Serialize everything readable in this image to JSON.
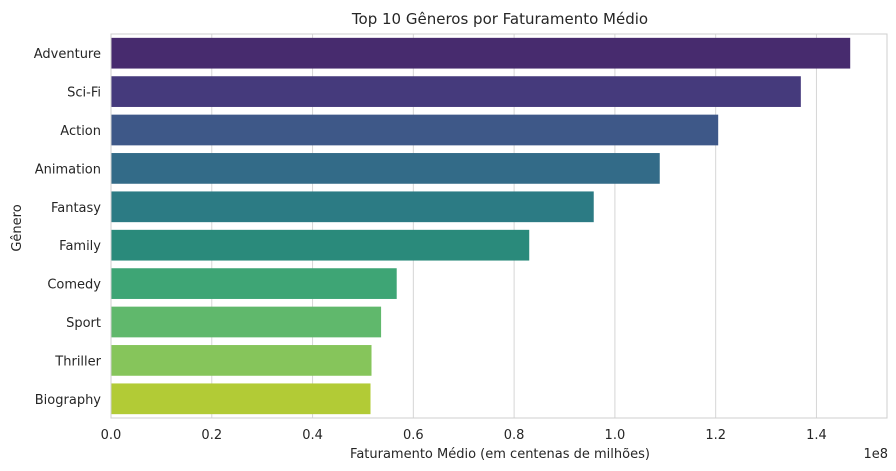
{
  "chart_data": {
    "type": "bar",
    "orientation": "horizontal",
    "title": "Top 10 Gêneros por Faturamento Médio",
    "xlabel": "Faturamento Médio (em centenas de milhões)",
    "ylabel": "Gênero",
    "x_offset_label": "1e8",
    "xlim": [
      0,
      1.54
    ],
    "x_ticks": [
      0.0,
      0.2,
      0.4,
      0.6,
      0.8,
      1.0,
      1.2,
      1.4
    ],
    "x_tick_labels": [
      "0.0",
      "0.2",
      "0.4",
      "0.6",
      "0.8",
      "1.0",
      "1.2",
      "1.4"
    ],
    "grid": true,
    "categories": [
      "Adventure",
      "Sci-Fi",
      "Action",
      "Animation",
      "Fantasy",
      "Family",
      "Comedy",
      "Sport",
      "Thriller",
      "Biography"
    ],
    "values": [
      1.467,
      1.369,
      1.205,
      1.089,
      0.958,
      0.83,
      0.567,
      0.536,
      0.517,
      0.515
    ],
    "colors": [
      "#472b6e",
      "#453a7c",
      "#3e5888",
      "#336b88",
      "#2c7b84",
      "#2a8a7b",
      "#3ea575",
      "#60b86c",
      "#86c55b",
      "#b2cb36"
    ]
  }
}
